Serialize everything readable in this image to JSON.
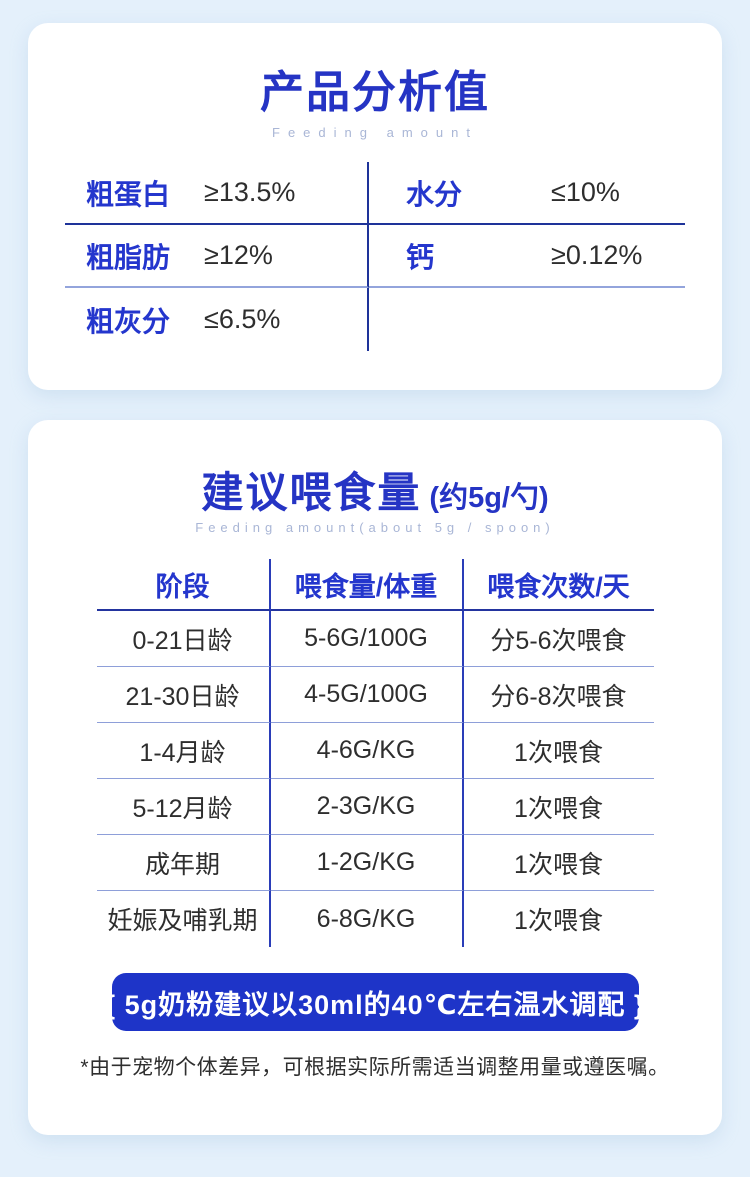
{
  "page": {
    "background_color": "#e4f0fb",
    "accent_color": "#2534c4",
    "banner_color": "#1e34c8"
  },
  "analysis_card": {
    "title": "产品分析值",
    "subtitle": "Feeding amount",
    "rows": [
      [
        {
          "label": "粗蛋白",
          "value": "≥13.5%"
        },
        {
          "label": "水分",
          "value": "≤10%"
        }
      ],
      [
        {
          "label": "粗脂肪",
          "value": "≥12%"
        },
        {
          "label": "钙",
          "value": "≥0.12%"
        }
      ],
      [
        {
          "label": "粗灰分",
          "value": "≤6.5%"
        },
        null
      ]
    ]
  },
  "feeding_card": {
    "title": "建议喂食量",
    "title_suffix": " (约5g/勺)",
    "subtitle": "Feeding amount(about 5g / spoon)",
    "table": {
      "headers": [
        "阶段",
        "喂食量/体重",
        "喂食次数/天"
      ],
      "rows": [
        [
          "0-21日龄",
          "5-6G/100G",
          "分5-6次喂食"
        ],
        [
          "21-30日龄",
          "4-5G/100G",
          "分6-8次喂食"
        ],
        [
          "1-4月龄",
          "4-6G/KG",
          "1次喂食"
        ],
        [
          "5-12月龄",
          "2-3G/KG",
          "1次喂食"
        ],
        [
          "成年期",
          "1-2G/KG",
          "1次喂食"
        ],
        [
          "妊娠及哺乳期",
          "6-8G/KG",
          "1次喂食"
        ]
      ]
    },
    "banner": "{ 5g奶粉建议以30ml的40℃左右温水调配 }",
    "footnote": "*由于宠物个体差异，可根据实际所需适当调整用量或遵医嘱。"
  }
}
